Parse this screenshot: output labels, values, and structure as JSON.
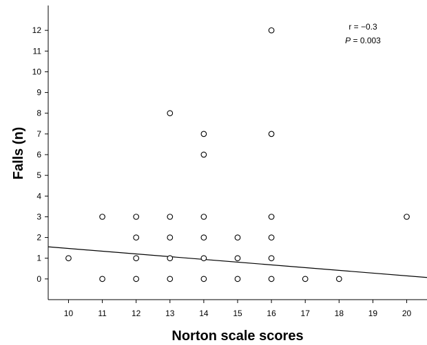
{
  "chart_data": {
    "type": "scatter",
    "title": "",
    "xlabel": "Norton scale scores",
    "ylabel": "Falls (n)",
    "xlim": [
      9.4,
      20.6
    ],
    "ylim": [
      -1,
      13.2
    ],
    "xticks": [
      10,
      11,
      12,
      13,
      14,
      15,
      16,
      17,
      18,
      19,
      20
    ],
    "yticks": [
      0,
      1,
      2,
      3,
      4,
      5,
      6,
      7,
      8,
      9,
      10,
      11,
      12
    ],
    "grid": false,
    "points": [
      {
        "x": 10,
        "y": 1
      },
      {
        "x": 11,
        "y": 3
      },
      {
        "x": 11,
        "y": 0
      },
      {
        "x": 12,
        "y": 3
      },
      {
        "x": 12,
        "y": 2
      },
      {
        "x": 12,
        "y": 1
      },
      {
        "x": 12,
        "y": 0
      },
      {
        "x": 13,
        "y": 8
      },
      {
        "x": 13,
        "y": 3
      },
      {
        "x": 13,
        "y": 2
      },
      {
        "x": 13,
        "y": 1
      },
      {
        "x": 13,
        "y": 0
      },
      {
        "x": 14,
        "y": 7
      },
      {
        "x": 14,
        "y": 6
      },
      {
        "x": 14,
        "y": 3
      },
      {
        "x": 14,
        "y": 2
      },
      {
        "x": 14,
        "y": 1
      },
      {
        "x": 14,
        "y": 0
      },
      {
        "x": 15,
        "y": 2
      },
      {
        "x": 15,
        "y": 1
      },
      {
        "x": 15,
        "y": 0
      },
      {
        "x": 16,
        "y": 12
      },
      {
        "x": 16,
        "y": 7
      },
      {
        "x": 16,
        "y": 3
      },
      {
        "x": 16,
        "y": 2
      },
      {
        "x": 16,
        "y": 1
      },
      {
        "x": 16,
        "y": 0
      },
      {
        "x": 17,
        "y": 0
      },
      {
        "x": 18,
        "y": 0
      },
      {
        "x": 20,
        "y": 3
      }
    ],
    "fit_line": {
      "x": [
        9.4,
        20.6
      ],
      "y": [
        1.55,
        0.07
      ]
    },
    "annotations": {
      "r_text": "r = −0.3",
      "p_label": "P",
      "p_value_text": " = 0.003"
    }
  }
}
